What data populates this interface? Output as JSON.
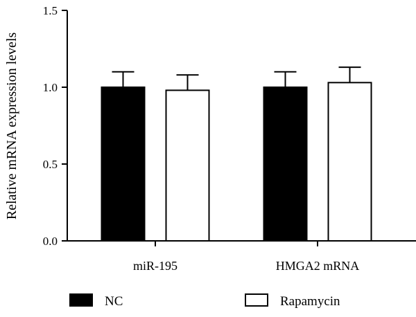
{
  "chart_data": {
    "type": "bar",
    "title": "",
    "xlabel": "",
    "ylabel": "Relative mRNA expression levels",
    "ylim": [
      0,
      1.5
    ],
    "yticks": [
      "0.0",
      "0.5",
      "1.0",
      "1.5"
    ],
    "categories": [
      "miR-195",
      "HMGA2 mRNA"
    ],
    "series": [
      {
        "name": "NC",
        "values": [
          1.0,
          1.0
        ],
        "errors": [
          0.1,
          0.1
        ],
        "color": "#000000"
      },
      {
        "name": "Rapamycin",
        "values": [
          0.98,
          1.03
        ],
        "errors": [
          0.1,
          0.1
        ],
        "color": "#ffffff"
      }
    ],
    "grid": false,
    "legend_position": "bottom"
  }
}
